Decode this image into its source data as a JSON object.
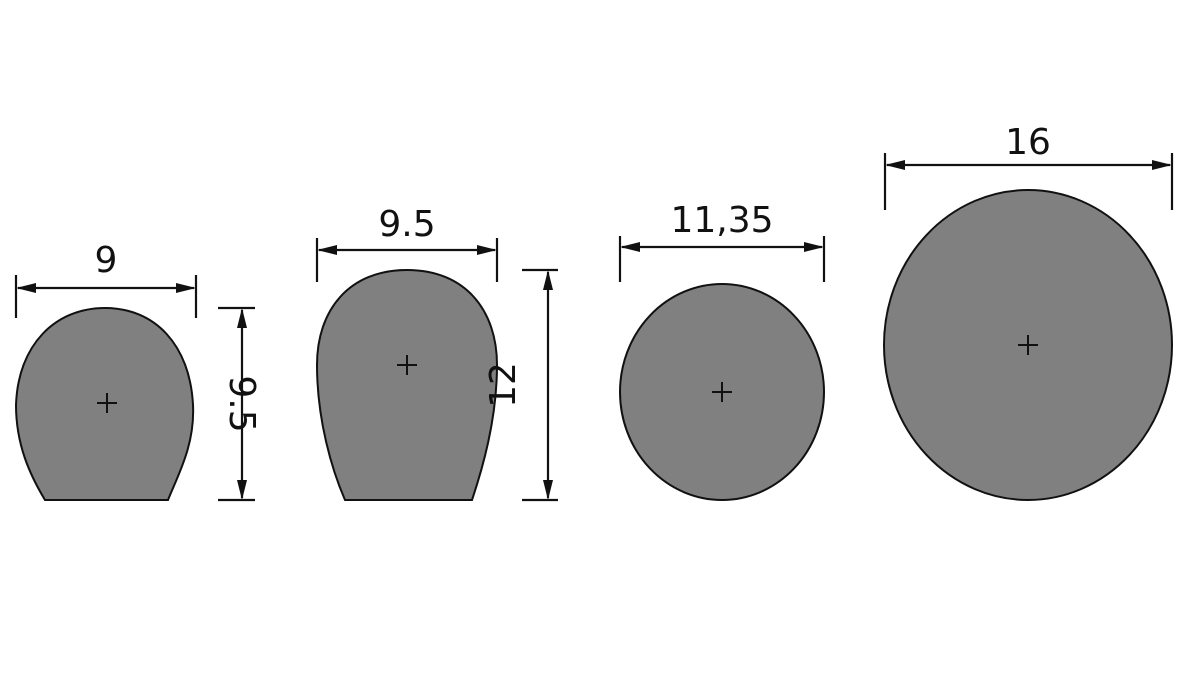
{
  "profiles": [
    {
      "id": "profile-1",
      "width_label": "9",
      "height_label": "9.5"
    },
    {
      "id": "profile-2",
      "width_label": "9.5",
      "height_label": "12"
    },
    {
      "id": "profile-3",
      "width_label": "11,35"
    },
    {
      "id": "profile-4",
      "width_label": "16"
    }
  ]
}
